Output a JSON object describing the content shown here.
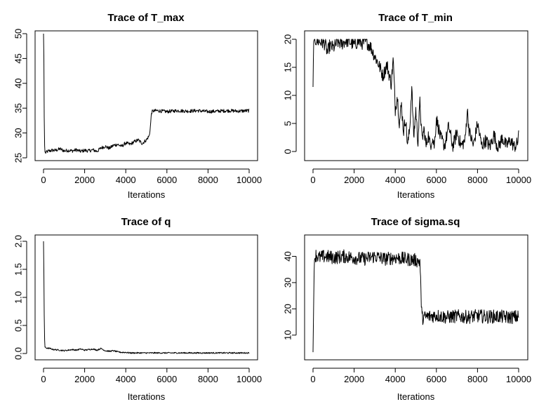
{
  "chart_data": [
    {
      "type": "line",
      "title": "Trace of T_max",
      "xlabel": "Iterations",
      "ylabel": "",
      "xlim": [
        0,
        10000
      ],
      "ylim": [
        25,
        50
      ],
      "xticks": [
        0,
        2000,
        4000,
        6000,
        8000,
        10000
      ],
      "yticks": [
        25,
        30,
        35,
        40,
        45,
        50
      ],
      "grid": false,
      "series": [
        {
          "x": [
            0,
            20,
            40,
            60,
            100,
            200,
            400,
            600,
            800,
            1000,
            1200,
            1400,
            1600,
            1800,
            2000,
            2200,
            2400,
            2600,
            2800,
            3000,
            3200,
            3400,
            3600,
            3800,
            4000,
            4200,
            4400,
            4600,
            4800,
            5000,
            5150,
            5200,
            5250,
            5300,
            5500,
            6000,
            6500,
            7000,
            7500,
            8000,
            8500,
            9000,
            9500,
            10000
          ],
          "y": [
            50,
            45,
            30,
            26.2,
            26,
            26.3,
            26.5,
            26.5,
            26.8,
            26.4,
            26.5,
            26.4,
            26.6,
            26.3,
            26.5,
            26.4,
            26.6,
            26.3,
            27,
            27.3,
            26.9,
            27.5,
            27.7,
            27.3,
            28,
            27.7,
            28.2,
            28.6,
            27.9,
            28.6,
            29.5,
            31.5,
            34,
            34.4,
            34.5,
            34.3,
            34.5,
            34.4,
            34.5,
            34.3,
            34.4,
            34.5,
            34.4,
            34.5
          ],
          "noise": 0.35
        }
      ]
    },
    {
      "type": "line",
      "title": "Trace of T_min",
      "xlabel": "Iterations",
      "ylabel": "",
      "xlim": [
        0,
        10000
      ],
      "ylim": [
        0,
        20
      ],
      "xticks": [
        0,
        2000,
        4000,
        6000,
        8000,
        10000
      ],
      "yticks": [
        0,
        5,
        10,
        15,
        20
      ],
      "grid": false,
      "series": [
        {
          "x": [
            0,
            30,
            60,
            200,
            400,
            600,
            700,
            800,
            1000,
            1200,
            1400,
            1600,
            1800,
            2000,
            2200,
            2400,
            2600,
            2800,
            3000,
            3200,
            3400,
            3600,
            3800,
            3900,
            4000,
            4100,
            4200,
            4300,
            4400,
            4500,
            4600,
            4700,
            4800,
            4900,
            5000,
            5100,
            5200,
            5300,
            5400,
            5500,
            5600,
            5700,
            5800,
            5900,
            6000,
            6200,
            6400,
            6600,
            6800,
            7000,
            7200,
            7400,
            7500,
            7600,
            7800,
            8000,
            8200,
            8400,
            8600,
            8800,
            9000,
            9200,
            9400,
            9600,
            9800,
            9950,
            10000
          ],
          "y": [
            11.5,
            19.5,
            20,
            19.7,
            19.5,
            19.2,
            17.5,
            18.8,
            18.5,
            19.5,
            19.2,
            19.8,
            19.5,
            19,
            19.6,
            19.3,
            19.5,
            18.7,
            17,
            15.5,
            13.5,
            15.5,
            12,
            16.5,
            7.5,
            10,
            5,
            8.5,
            3.5,
            6,
            1,
            4,
            11.5,
            2.5,
            7.5,
            1.5,
            9,
            2,
            4,
            1,
            3,
            1,
            2.5,
            1,
            6,
            2.5,
            1,
            4.5,
            0.8,
            3.5,
            1,
            2,
            7.5,
            3.5,
            1,
            5,
            1,
            2,
            0.8,
            3,
            0.5,
            2.5,
            1,
            2,
            0.8,
            1.5,
            4
          ],
          "noise": 1.2
        }
      ]
    },
    {
      "type": "line",
      "title": "Trace of q",
      "xlabel": "Iterations",
      "ylabel": "",
      "xlim": [
        0,
        10000
      ],
      "ylim": [
        0,
        2
      ],
      "xticks": [
        0,
        2000,
        4000,
        6000,
        8000,
        10000
      ],
      "yticks": [
        0.0,
        0.5,
        1.0,
        1.5,
        2.0
      ],
      "ytick_labels": [
        "0.0",
        "0.5",
        "1.0",
        "1.5",
        "2.0"
      ],
      "grid": false,
      "series": [
        {
          "x": [
            0,
            20,
            40,
            60,
            100,
            300,
            500,
            800,
            1000,
            1200,
            1400,
            1600,
            1800,
            2000,
            2200,
            2400,
            2600,
            2800,
            3000,
            3200,
            3400,
            3600,
            3800,
            4000,
            4200,
            4500,
            5000,
            6000,
            7000,
            8000,
            9000,
            10000
          ],
          "y": [
            2.05,
            1.4,
            0.5,
            0.12,
            0.1,
            0.09,
            0.07,
            0.06,
            0.05,
            0.06,
            0.07,
            0.06,
            0.08,
            0.06,
            0.07,
            0.08,
            0.06,
            0.09,
            0.05,
            0.04,
            0.05,
            0.03,
            0.02,
            0.02,
            0.01,
            0.01,
            0.01,
            0.01,
            0.01,
            0.01,
            0.01,
            0.01
          ],
          "noise": 0.012
        }
      ]
    },
    {
      "type": "line",
      "title": "Trace of sigma.sq",
      "xlabel": "Iterations",
      "ylabel": "",
      "xlim": [
        0,
        10000
      ],
      "ylim": [
        3,
        46
      ],
      "xticks": [
        0,
        2000,
        4000,
        6000,
        8000,
        10000
      ],
      "yticks": [
        10,
        20,
        30,
        40
      ],
      "grid": false,
      "series": [
        {
          "x": [
            0,
            30,
            60,
            100,
            150,
            300,
            600,
            1000,
            1500,
            2000,
            2500,
            3000,
            3500,
            4000,
            4500,
            5000,
            5200,
            5250,
            5300,
            5500,
            6000,
            6500,
            7000,
            7500,
            8000,
            8500,
            9000,
            9500,
            10000
          ],
          "y": [
            3.5,
            20,
            38,
            40,
            40.5,
            39.5,
            40,
            39.5,
            40,
            39.5,
            39,
            40,
            39,
            39.5,
            39,
            38.5,
            38,
            26,
            16.5,
            17,
            17.5,
            16.8,
            17.2,
            16.9,
            17.3,
            17,
            17.1,
            16.8,
            17
          ],
          "noise": 2.6
        }
      ]
    }
  ]
}
